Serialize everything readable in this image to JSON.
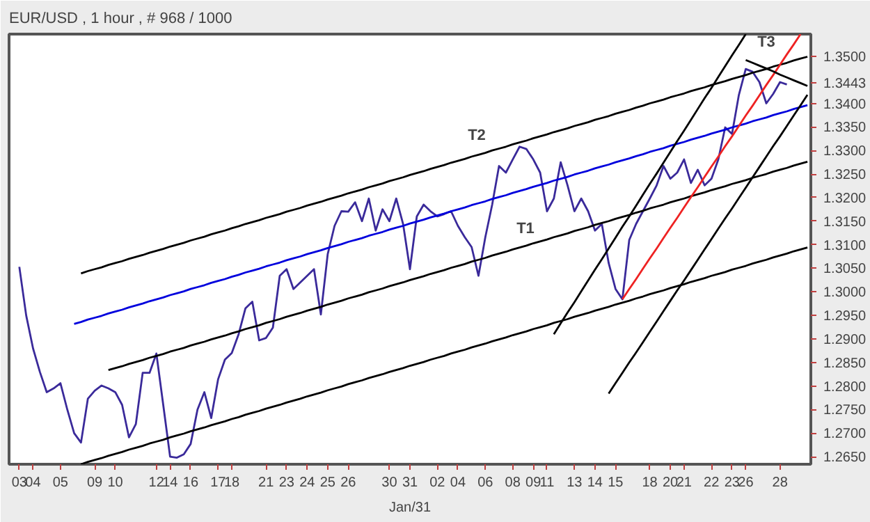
{
  "chart_data": {
    "type": "line",
    "title": "EUR/USD , 1 hour , # 968 / 1000",
    "categories": [
      null,
      "03",
      null,
      "04",
      null,
      null,
      null,
      "05",
      null,
      null,
      null,
      null,
      "09",
      null,
      null,
      "10",
      null,
      null,
      null,
      null,
      null,
      "12",
      null,
      "14",
      null,
      null,
      "16",
      null,
      null,
      null,
      "17",
      null,
      "18",
      null,
      null,
      null,
      null,
      "21",
      null,
      null,
      "23",
      null,
      null,
      "24",
      null,
      null,
      "25",
      null,
      null,
      "26",
      null,
      null,
      null,
      null,
      null,
      "30",
      null,
      null,
      "31",
      null,
      null,
      null,
      "02",
      null,
      null,
      "04",
      null,
      null,
      null,
      "06",
      null,
      null,
      null,
      "08",
      null,
      null,
      "09",
      null,
      "11",
      null,
      null,
      null,
      "13",
      null,
      null,
      "14",
      null,
      null,
      "15",
      null,
      null,
      null,
      null,
      "18",
      null,
      null,
      "20",
      null,
      "21",
      null,
      null,
      null,
      "22",
      null,
      null,
      "23",
      null,
      "26",
      null,
      null,
      null,
      null,
      "28",
      null,
      null,
      null,
      null
    ],
    "ylim": [
      1.2634,
      1.3547
    ],
    "yticks": [
      {
        "value": 1.265,
        "label": "1.2650"
      },
      {
        "value": 1.27,
        "label": "1.2700"
      },
      {
        "value": 1.275,
        "label": "1.2750"
      },
      {
        "value": 1.28,
        "label": "1.2800"
      },
      {
        "value": 1.285,
        "label": "1.2850"
      },
      {
        "value": 1.29,
        "label": "1.2900"
      },
      {
        "value": 1.295,
        "label": "1.2950"
      },
      {
        "value": 1.3,
        "label": "1.3000"
      },
      {
        "value": 1.305,
        "label": "1.3050"
      },
      {
        "value": 1.31,
        "label": "1.3100"
      },
      {
        "value": 1.315,
        "label": "1.3150"
      },
      {
        "value": 1.32,
        "label": "1.3200"
      },
      {
        "value": 1.325,
        "label": "1.3250"
      },
      {
        "value": 1.33,
        "label": "1.3300"
      },
      {
        "value": 1.335,
        "label": "1.3350"
      },
      {
        "value": 1.34,
        "label": "1.3400"
      },
      {
        "value": 1.3443,
        "label": "1.3443"
      },
      {
        "value": 1.35,
        "label": "1.3500"
      }
    ],
    "grid": false,
    "marker": "none",
    "series": [
      {
        "color": "#3a2a9a",
        "values": [
          null,
          1.3053,
          1.295,
          1.288,
          1.283,
          1.2787,
          1.2795,
          1.2806,
          1.275,
          1.27,
          1.268,
          1.2773,
          1.279,
          1.2801,
          1.2795,
          1.2787,
          1.276,
          1.2691,
          1.2719,
          1.2828,
          1.2828,
          1.2869,
          1.276,
          1.265,
          1.2648,
          1.2655,
          1.2677,
          1.275,
          1.2787,
          1.2732,
          1.2814,
          1.2856,
          1.287,
          1.291,
          1.2965,
          1.2979,
          1.2897,
          1.2902,
          1.2924,
          1.3034,
          1.3048,
          1.3006,
          1.302,
          1.3034,
          1.3048,
          1.2952,
          1.308,
          1.314,
          1.3171,
          1.317,
          1.319,
          1.315,
          1.3198,
          1.313,
          1.3175,
          1.315,
          1.3198,
          1.3144,
          1.3048,
          1.316,
          1.3185,
          1.3171,
          1.316,
          1.3165,
          1.3171,
          1.314,
          1.3116,
          1.3095,
          1.3034,
          1.3116,
          1.3185,
          1.3267,
          1.3253,
          1.3281,
          1.3308,
          1.3303,
          1.3281,
          1.3253,
          1.3171,
          1.3198,
          1.3275,
          1.3226,
          1.3171,
          1.3198,
          1.3171,
          1.313,
          1.3144,
          1.3061,
          1.3006,
          1.2984,
          1.311,
          1.3144,
          1.3171,
          1.3198,
          1.3226,
          1.3267,
          1.324,
          1.3253,
          1.3281,
          1.3231,
          1.3259,
          1.3226,
          1.324,
          1.3281,
          1.3349,
          1.3335,
          1.3418,
          1.3473,
          1.3467,
          1.3445,
          1.34,
          1.342,
          1.3445,
          1.344,
          null,
          null,
          null
        ]
      },
      {
        "color": "#0000dd",
        "values": [
          null,
          null,
          null,
          null,
          null,
          null,
          null,
          null,
          null,
          1.2932,
          1.2936,
          1.2941,
          1.2945,
          1.2949,
          1.2954,
          1.2958,
          1.2962,
          1.2967,
          1.2971,
          1.2975,
          1.298,
          1.2984,
          1.2988,
          1.2993,
          1.2997,
          1.3001,
          1.3006,
          1.301,
          1.3014,
          1.3019,
          1.3023,
          1.3027,
          1.3032,
          1.3036,
          1.3041,
          1.3045,
          1.3049,
          1.3054,
          1.3058,
          1.3062,
          1.3067,
          1.3071,
          1.3075,
          1.308,
          1.3084,
          1.3088,
          1.3093,
          1.3097,
          1.3101,
          1.3106,
          1.311,
          1.3114,
          1.3119,
          1.3123,
          1.3127,
          1.3132,
          1.3136,
          1.314,
          1.3145,
          1.3149,
          1.3153,
          1.3158,
          1.3162,
          1.3166,
          1.3171,
          1.3175,
          1.3179,
          1.3184,
          1.3188,
          1.3192,
          1.3197,
          1.3201,
          1.3205,
          1.321,
          1.3214,
          1.3218,
          1.3223,
          1.3227,
          1.3231,
          1.3236,
          1.324,
          1.3244,
          1.3249,
          1.3253,
          1.3257,
          1.3262,
          1.3266,
          1.327,
          1.3275,
          1.3279,
          1.3283,
          1.3288,
          1.3292,
          1.3297,
          1.3301,
          1.3305,
          1.331,
          1.3314,
          1.3318,
          1.3323,
          1.3327,
          1.3331,
          1.3336,
          1.334,
          1.3344,
          1.3349,
          1.3353,
          1.3357,
          1.3362,
          1.3366,
          1.337,
          1.3375,
          1.3379,
          1.3383,
          1.3388,
          1.3392,
          1.3396
        ]
      },
      {
        "color": "#000000",
        "values": [
          null,
          null,
          null,
          null,
          null,
          null,
          null,
          null,
          null,
          null,
          1.3039,
          1.3044,
          1.3048,
          1.3052,
          1.3057,
          1.3061,
          1.3065,
          1.307,
          1.3074,
          1.3078,
          1.3083,
          1.3087,
          1.3091,
          1.3096,
          1.31,
          1.3104,
          1.3109,
          1.3113,
          1.3117,
          1.3122,
          1.3126,
          1.313,
          1.3135,
          1.3139,
          1.3144,
          1.3148,
          1.3152,
          1.3157,
          1.3161,
          1.3165,
          1.317,
          1.3174,
          1.3178,
          1.3183,
          1.3187,
          1.3191,
          1.3196,
          1.32,
          1.3204,
          1.3209,
          1.3213,
          1.3217,
          1.3222,
          1.3226,
          1.323,
          1.3235,
          1.3239,
          1.3243,
          1.3248,
          1.3252,
          1.3256,
          1.3261,
          1.3265,
          1.3269,
          1.3274,
          1.3278,
          1.3282,
          1.3287,
          1.3291,
          1.3295,
          1.33,
          1.3304,
          1.3308,
          1.3313,
          1.3317,
          1.3321,
          1.3326,
          1.333,
          1.3334,
          1.3339,
          1.3343,
          1.3347,
          1.3352,
          1.3356,
          1.336,
          1.3365,
          1.3369,
          1.3373,
          1.3378,
          1.3382,
          1.3386,
          1.3391,
          1.3395,
          1.34,
          1.3404,
          1.3408,
          1.3413,
          1.3417,
          1.3421,
          1.3426,
          1.343,
          1.3434,
          1.3439,
          1.3443,
          1.3447,
          1.3452,
          1.3456,
          1.346,
          1.3465,
          1.3469,
          1.3473,
          1.3478,
          1.3482,
          1.3486,
          1.3491,
          1.3495,
          1.3499
        ]
      },
      {
        "color": "#000000",
        "values": [
          null,
          null,
          null,
          null,
          null,
          null,
          null,
          null,
          null,
          null,
          null,
          null,
          null,
          null,
          1.2834,
          1.2838,
          1.2842,
          1.2847,
          1.2851,
          1.2855,
          1.286,
          1.2864,
          1.2868,
          1.2873,
          1.2877,
          1.2881,
          1.2886,
          1.289,
          1.2894,
          1.2899,
          1.2903,
          1.2907,
          1.2912,
          1.2916,
          1.2921,
          1.2925,
          1.2929,
          1.2934,
          1.2938,
          1.2942,
          1.2947,
          1.2951,
          1.2955,
          1.296,
          1.2964,
          1.2968,
          1.2973,
          1.2977,
          1.2981,
          1.2986,
          1.299,
          1.2994,
          1.2999,
          1.3003,
          1.3007,
          1.3012,
          1.3016,
          1.302,
          1.3025,
          1.3029,
          1.3033,
          1.3038,
          1.3042,
          1.3046,
          1.3051,
          1.3055,
          1.3059,
          1.3064,
          1.3068,
          1.3072,
          1.3077,
          1.3081,
          1.3085,
          1.309,
          1.3094,
          1.3098,
          1.3103,
          1.3107,
          1.3111,
          1.3116,
          1.312,
          1.3124,
          1.3129,
          1.3133,
          1.3137,
          1.3142,
          1.3146,
          1.315,
          1.3155,
          1.3159,
          1.3163,
          1.3168,
          1.3172,
          1.3177,
          1.3181,
          1.3185,
          1.319,
          1.3194,
          1.3198,
          1.3203,
          1.3207,
          1.3211,
          1.3216,
          1.322,
          1.3224,
          1.3229,
          1.3233,
          1.3237,
          1.3242,
          1.3246,
          1.325,
          1.3255,
          1.3259,
          1.3263,
          1.3268,
          1.3272,
          1.3276
        ]
      },
      {
        "color": "#000000",
        "values": [
          null,
          null,
          null,
          null,
          null,
          null,
          null,
          null,
          null,
          null,
          1.2634,
          1.2639,
          1.2643,
          1.2647,
          1.2652,
          1.2656,
          1.266,
          1.2665,
          1.2669,
          1.2673,
          1.2678,
          1.2682,
          1.2686,
          1.2691,
          1.2695,
          1.2699,
          1.2704,
          1.2708,
          1.2712,
          1.2717,
          1.2721,
          1.2725,
          1.273,
          1.2734,
          1.2739,
          1.2743,
          1.2747,
          1.2752,
          1.2756,
          1.276,
          1.2765,
          1.2769,
          1.2773,
          1.2778,
          1.2782,
          1.2786,
          1.2791,
          1.2795,
          1.2799,
          1.2804,
          1.2808,
          1.2812,
          1.2817,
          1.2821,
          1.2825,
          1.283,
          1.2834,
          1.2838,
          1.2843,
          1.2847,
          1.2851,
          1.2856,
          1.286,
          1.2864,
          1.2869,
          1.2873,
          1.2877,
          1.2882,
          1.2886,
          1.289,
          1.2895,
          1.2899,
          1.2903,
          1.2908,
          1.2912,
          1.2916,
          1.2921,
          1.2925,
          1.2929,
          1.2934,
          1.2938,
          1.2942,
          1.2947,
          1.2951,
          1.2955,
          1.296,
          1.2964,
          1.2968,
          1.2973,
          1.2977,
          1.2981,
          1.2986,
          1.299,
          1.2995,
          1.2999,
          1.3003,
          1.3008,
          1.3012,
          1.3016,
          1.3021,
          1.3025,
          1.3029,
          1.3034,
          1.3038,
          1.3042,
          1.3047,
          1.3051,
          1.3055,
          1.306,
          1.3064,
          1.3068,
          1.3073,
          1.3077,
          1.3081,
          1.3086,
          1.309,
          1.3094
        ]
      },
      {
        "color": "#ee2222",
        "values": [
          null,
          null,
          null,
          null,
          null,
          null,
          null,
          null,
          null,
          null,
          null,
          null,
          null,
          null,
          null,
          null,
          null,
          null,
          null,
          null,
          null,
          null,
          null,
          null,
          null,
          null,
          null,
          null,
          null,
          null,
          null,
          null,
          null,
          null,
          null,
          null,
          null,
          null,
          null,
          null,
          null,
          null,
          null,
          null,
          null,
          null,
          null,
          null,
          null,
          null,
          null,
          null,
          null,
          null,
          null,
          null,
          null,
          null,
          null,
          null,
          null,
          null,
          null,
          null,
          null,
          null,
          null,
          null,
          null,
          null,
          null,
          null,
          null,
          null,
          null,
          null,
          null,
          null,
          null,
          null,
          null,
          null,
          null,
          null,
          null,
          null,
          null,
          null,
          null,
          1.2984,
          1.3006,
          1.3027,
          1.3049,
          1.3071,
          1.3092,
          1.3114,
          1.3136,
          1.3157,
          1.3179,
          1.3201,
          1.3222,
          1.3244,
          1.3266,
          1.3287,
          1.3309,
          1.333,
          1.3352,
          1.3374,
          1.3395,
          1.3417,
          1.3439,
          1.346,
          1.3482,
          1.3504,
          1.3525,
          1.3547,
          null
        ]
      },
      {
        "color": "#000000",
        "values": [
          null,
          null,
          null,
          null,
          null,
          null,
          null,
          null,
          null,
          null,
          null,
          null,
          null,
          null,
          null,
          null,
          null,
          null,
          null,
          null,
          null,
          null,
          null,
          null,
          null,
          null,
          null,
          null,
          null,
          null,
          null,
          null,
          null,
          null,
          null,
          null,
          null,
          null,
          null,
          null,
          null,
          null,
          null,
          null,
          null,
          null,
          null,
          null,
          null,
          null,
          null,
          null,
          null,
          null,
          null,
          null,
          null,
          null,
          null,
          null,
          null,
          null,
          null,
          null,
          null,
          null,
          null,
          null,
          null,
          null,
          null,
          null,
          null,
          null,
          null,
          null,
          null,
          null,
          null,
          1.291,
          1.2933,
          1.2956,
          1.2978,
          1.3001,
          1.3024,
          1.3047,
          1.3069,
          1.3092,
          1.3115,
          1.3138,
          1.316,
          1.3183,
          1.3206,
          1.3229,
          1.3251,
          1.3274,
          1.3297,
          1.332,
          1.3342,
          1.3365,
          1.3388,
          1.3411,
          1.3433,
          1.3456,
          1.3479,
          1.3502,
          1.3524,
          1.3547,
          null,
          null,
          null,
          null,
          null,
          null,
          null,
          null,
          null
        ]
      },
      {
        "color": "#000000",
        "values": [
          null,
          null,
          null,
          null,
          null,
          null,
          null,
          null,
          null,
          null,
          null,
          null,
          null,
          null,
          null,
          null,
          null,
          null,
          null,
          null,
          null,
          null,
          null,
          null,
          null,
          null,
          null,
          null,
          null,
          null,
          null,
          null,
          null,
          null,
          null,
          null,
          null,
          null,
          null,
          null,
          null,
          null,
          null,
          null,
          null,
          null,
          null,
          null,
          null,
          null,
          null,
          null,
          null,
          null,
          null,
          null,
          null,
          null,
          null,
          null,
          null,
          null,
          null,
          null,
          null,
          null,
          null,
          null,
          null,
          null,
          null,
          null,
          null,
          null,
          null,
          null,
          null,
          null,
          null,
          null,
          null,
          null,
          null,
          null,
          null,
          null,
          null,
          1.2784,
          1.2806,
          1.2828,
          1.285,
          1.2871,
          1.2893,
          1.2915,
          1.2937,
          1.2959,
          1.2981,
          1.3003,
          1.3024,
          1.3046,
          1.3068,
          1.309,
          1.3112,
          1.3134,
          1.3156,
          1.3177,
          1.3199,
          1.3221,
          1.3243,
          1.3265,
          1.3287,
          1.3309,
          1.333,
          1.3352,
          1.3374,
          1.3396,
          1.3418
        ]
      },
      {
        "color": "#000000",
        "values": [
          null,
          null,
          null,
          null,
          null,
          null,
          null,
          null,
          null,
          null,
          null,
          null,
          null,
          null,
          null,
          null,
          null,
          null,
          null,
          null,
          null,
          null,
          null,
          null,
          null,
          null,
          null,
          null,
          null,
          null,
          null,
          null,
          null,
          null,
          null,
          null,
          null,
          null,
          null,
          null,
          null,
          null,
          null,
          null,
          null,
          null,
          null,
          null,
          null,
          null,
          null,
          null,
          null,
          null,
          null,
          null,
          null,
          null,
          null,
          null,
          null,
          null,
          null,
          null,
          null,
          null,
          null,
          null,
          null,
          null,
          null,
          null,
          null,
          null,
          null,
          null,
          null,
          null,
          null,
          null,
          null,
          null,
          null,
          null,
          null,
          null,
          null,
          null,
          null,
          null,
          null,
          null,
          null,
          null,
          null,
          null,
          null,
          null,
          null,
          null,
          null,
          null,
          null,
          null,
          null,
          null,
          null,
          1.3492,
          1.3486,
          1.348,
          1.3474,
          1.3468,
          1.3461,
          1.3455,
          1.3449,
          1.3443,
          1.3437
        ]
      }
    ],
    "annotations": [
      "T2",
      "T1",
      "T3",
      "Jan/31"
    ]
  }
}
